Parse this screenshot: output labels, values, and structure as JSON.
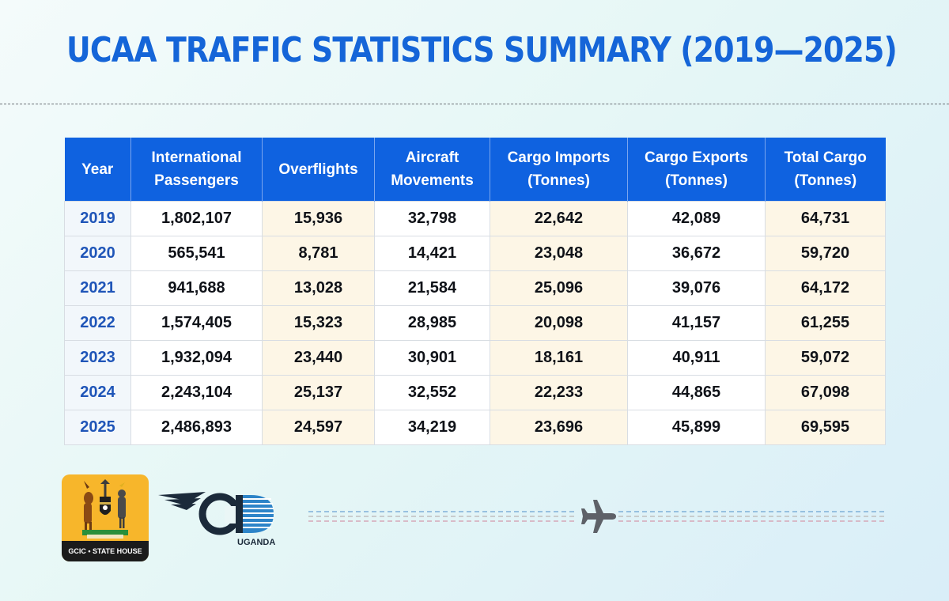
{
  "title": "UCAA TRAFFIC STATISTICS SUMMARY (2019—2025)",
  "table": {
    "headers": [
      [
        "Year"
      ],
      [
        "International",
        "Passengers"
      ],
      [
        "Overflights"
      ],
      [
        "Aircraft",
        "Movements"
      ],
      [
        "Cargo Imports",
        "(Tonnes)"
      ],
      [
        "Cargo Exports",
        "(Tonnes)"
      ],
      [
        "Total Cargo",
        "(Tonnes)"
      ]
    ],
    "rows": [
      [
        "2019",
        "1,802,107",
        "15,936",
        "32,798",
        "22,642",
        "42,089",
        "64,731"
      ],
      [
        "2020",
        "565,541",
        "8,781",
        "14,421",
        "23,048",
        "36,672",
        "59,720"
      ],
      [
        "2021",
        "941,688",
        "13,028",
        "21,584",
        "25,096",
        "39,076",
        "64,172"
      ],
      [
        "2022",
        "1,574,405",
        "15,323",
        "28,985",
        "20,098",
        "41,157",
        "61,255"
      ],
      [
        "2023",
        "1,932,094",
        "23,440",
        "30,901",
        "18,161",
        "40,911",
        "59,072"
      ],
      [
        "2024",
        "2,243,104",
        "25,137",
        "32,552",
        "22,233",
        "44,865",
        "67,098"
      ],
      [
        "2025",
        "2,486,893",
        "24,597",
        "34,219",
        "23,696",
        "45,899",
        "69,595"
      ]
    ]
  },
  "logos": {
    "gcic_label": "GCIC • STATE HOUSE",
    "caa_label": "UGANDA"
  },
  "colors": {
    "title": "#1565d8",
    "header_bg": "#0f62e0",
    "year_text": "#1f55b8",
    "tint_cell": "#fdf6e6"
  },
  "icons": [
    "uganda-coat-of-arms-icon",
    "caa-wing-logo-icon",
    "airplane-icon"
  ]
}
